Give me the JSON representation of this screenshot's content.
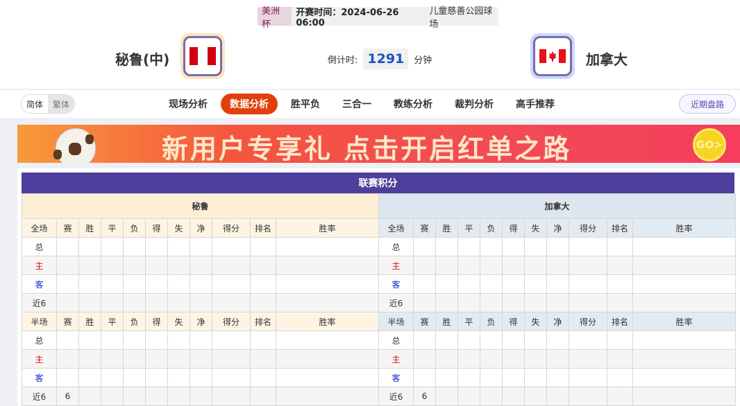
{
  "match": {
    "cup": "美洲杯",
    "time": "开赛时间：2024-06-26 06:00",
    "venue": "儿童慈善公园球场",
    "home": "秘鲁(中)",
    "away": "加拿大",
    "countdown_label": "倒计时:",
    "countdown": "1291",
    "countdown_unit": "分钟",
    "home_flag": "peru-flag",
    "away_flag": "canada-flag"
  },
  "nav": {
    "lang": [
      "简体",
      "繁体"
    ],
    "tabs": [
      "现场分析",
      "数据分析",
      "胜平负",
      "三合一",
      "教练分析",
      "裁判分析",
      "高手推荐"
    ],
    "active": "数据分析",
    "recent": "近期盘路"
  },
  "banner": {
    "text": "新用户专享礼 点击开启红单之路",
    "go": "GO>"
  },
  "standings": {
    "title": "联赛积分",
    "teams": [
      "秘鲁",
      "加拿大"
    ],
    "full_header": [
      "全场",
      "赛",
      "胜",
      "平",
      "负",
      "得",
      "失",
      "净",
      "得分",
      "排名",
      "胜率"
    ],
    "half_header": [
      "半场",
      "赛",
      "胜",
      "平",
      "负",
      "得",
      "失",
      "净",
      "得分",
      "排名",
      "胜率"
    ],
    "row_labels": [
      "总",
      "主",
      "客",
      "近6"
    ],
    "home_full": [
      [
        "",
        "",
        "",
        "",
        "",
        "",
        "",
        "",
        "",
        ""
      ],
      [
        "",
        "",
        "",
        "",
        "",
        "",
        "",
        "",
        "",
        ""
      ],
      [
        "",
        "",
        "",
        "",
        "",
        "",
        "",
        "",
        "",
        ""
      ],
      [
        "",
        "",
        "",
        "",
        "",
        "",
        "",
        "",
        "",
        ""
      ]
    ],
    "home_half": [
      [
        "",
        "",
        "",
        "",
        "",
        "",
        "",
        "",
        "",
        ""
      ],
      [
        "",
        "",
        "",
        "",
        "",
        "",
        "",
        "",
        "",
        ""
      ],
      [
        "",
        "",
        "",
        "",
        "",
        "",
        "",
        "",
        "",
        ""
      ],
      [
        "6",
        "",
        "",
        "",
        "",
        "",
        "",
        "",
        "",
        ""
      ]
    ],
    "away_full": [
      [
        "",
        "",
        "",
        "",
        "",
        "",
        "",
        "",
        "",
        ""
      ],
      [
        "",
        "",
        "",
        "",
        "",
        "",
        "",
        "",
        "",
        ""
      ],
      [
        "",
        "",
        "",
        "",
        "",
        "",
        "",
        "",
        "",
        ""
      ],
      [
        "",
        "",
        "",
        "",
        "",
        "",
        "",
        "",
        "",
        ""
      ]
    ],
    "away_half": [
      [
        "",
        "",
        "",
        "",
        "",
        "",
        "",
        "",
        "",
        ""
      ],
      [
        "",
        "",
        "",
        "",
        "",
        "",
        "",
        "",
        "",
        ""
      ],
      [
        "",
        "",
        "",
        "",
        "",
        "",
        "",
        "",
        "",
        ""
      ],
      [
        "6",
        "",
        "",
        "",
        "",
        "",
        "",
        "",
        "",
        ""
      ]
    ],
    "colors": {
      "home_row": "#e0101a",
      "away_row": "#1428c8",
      "title_bg": "#4f3e9c"
    }
  }
}
